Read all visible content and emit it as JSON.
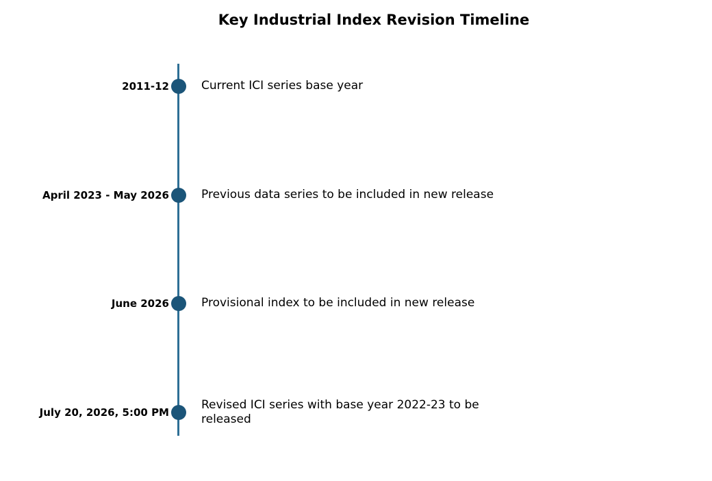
{
  "title": "Key Industrial Index Revision Timeline",
  "colors": {
    "line": "#2e6f95",
    "marker": "#1b5579"
  },
  "events": [
    {
      "date": "2011-12",
      "description": "Current ICI series base year"
    },
    {
      "date": "April 2023 - May 2026",
      "description": "Previous data series to be included in new release"
    },
    {
      "date": "June 2026",
      "description": "Provisional index to be included in new release"
    },
    {
      "date": "July 20, 2026, 5:00 PM",
      "description": "Revised ICI series with base year 2022-23 to be released"
    }
  ]
}
